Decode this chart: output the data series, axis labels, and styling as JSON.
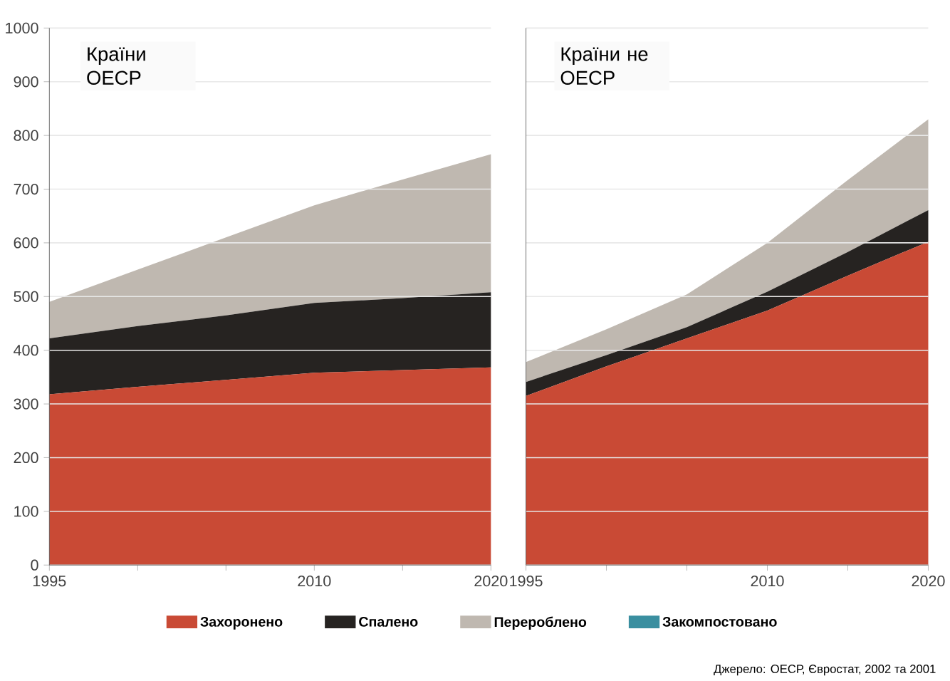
{
  "chart_data": [
    {
      "type": "area",
      "title": "Країни ОЕСР",
      "stacked": true,
      "grid": "y",
      "legend": "bottom",
      "x": [
        1995,
        2000,
        2005,
        2010,
        2015,
        2020
      ],
      "xlim": [
        1995,
        2020
      ],
      "ylim": [
        0,
        1000
      ],
      "xticks": [
        1995,
        {
          "value": 2000,
          "label": null
        },
        {
          "value": 2005,
          "label": null
        },
        2010,
        {
          "value": 2015,
          "label": null
        },
        2020
      ],
      "yticks": [
        0,
        100,
        200,
        300,
        400,
        500,
        600,
        700,
        800,
        900,
        1000
      ],
      "series": [
        {
          "name": "Захоронено",
          "color": "#c94a35",
          "values": [
            318,
            332,
            345,
            358,
            363,
            368
          ]
        },
        {
          "name": "Спалено",
          "color": "#262321",
          "values": [
            104,
            113,
            120,
            130,
            134,
            140
          ]
        },
        {
          "name": "Перероблено",
          "color": "#bfb8b0",
          "values": [
            68,
            105,
            145,
            182,
            221,
            257
          ]
        },
        {
          "name": "Закомпостовано",
          "color": "#3a8fa0",
          "values": [
            null,
            null,
            null,
            null,
            null,
            null
          ]
        }
      ]
    },
    {
      "type": "area",
      "title": "Країни не ОЕСР",
      "stacked": true,
      "grid": "y",
      "tick_labels": "x",
      "x": [
        1995,
        2000,
        2005,
        2010,
        2015,
        2020
      ],
      "xlim": [
        1995,
        2020
      ],
      "ylim": [
        0,
        1000
      ],
      "xticks": [
        1995,
        {
          "value": 2000,
          "label": null
        },
        {
          "value": 2005,
          "label": null
        },
        2010,
        {
          "value": 2015,
          "label": null
        },
        2020
      ],
      "yticks": [
        0,
        100,
        200,
        300,
        400,
        500,
        600,
        700,
        800,
        900,
        1000
      ],
      "annotations": [
        "Джерело: ОЕСР, Євростат, 2002 та 2001"
      ],
      "series": [
        {
          "color": "#c94a35",
          "values": [
            315,
            370,
            422,
            474,
            539,
            602
          ]
        },
        {
          "color": "#262321",
          "values": [
            26,
            21,
            21,
            35,
            44,
            59
          ]
        },
        {
          "color": "#bfb8b0",
          "values": [
            37,
            48,
            61,
            91,
            134,
            169
          ]
        }
      ]
    }
  ]
}
